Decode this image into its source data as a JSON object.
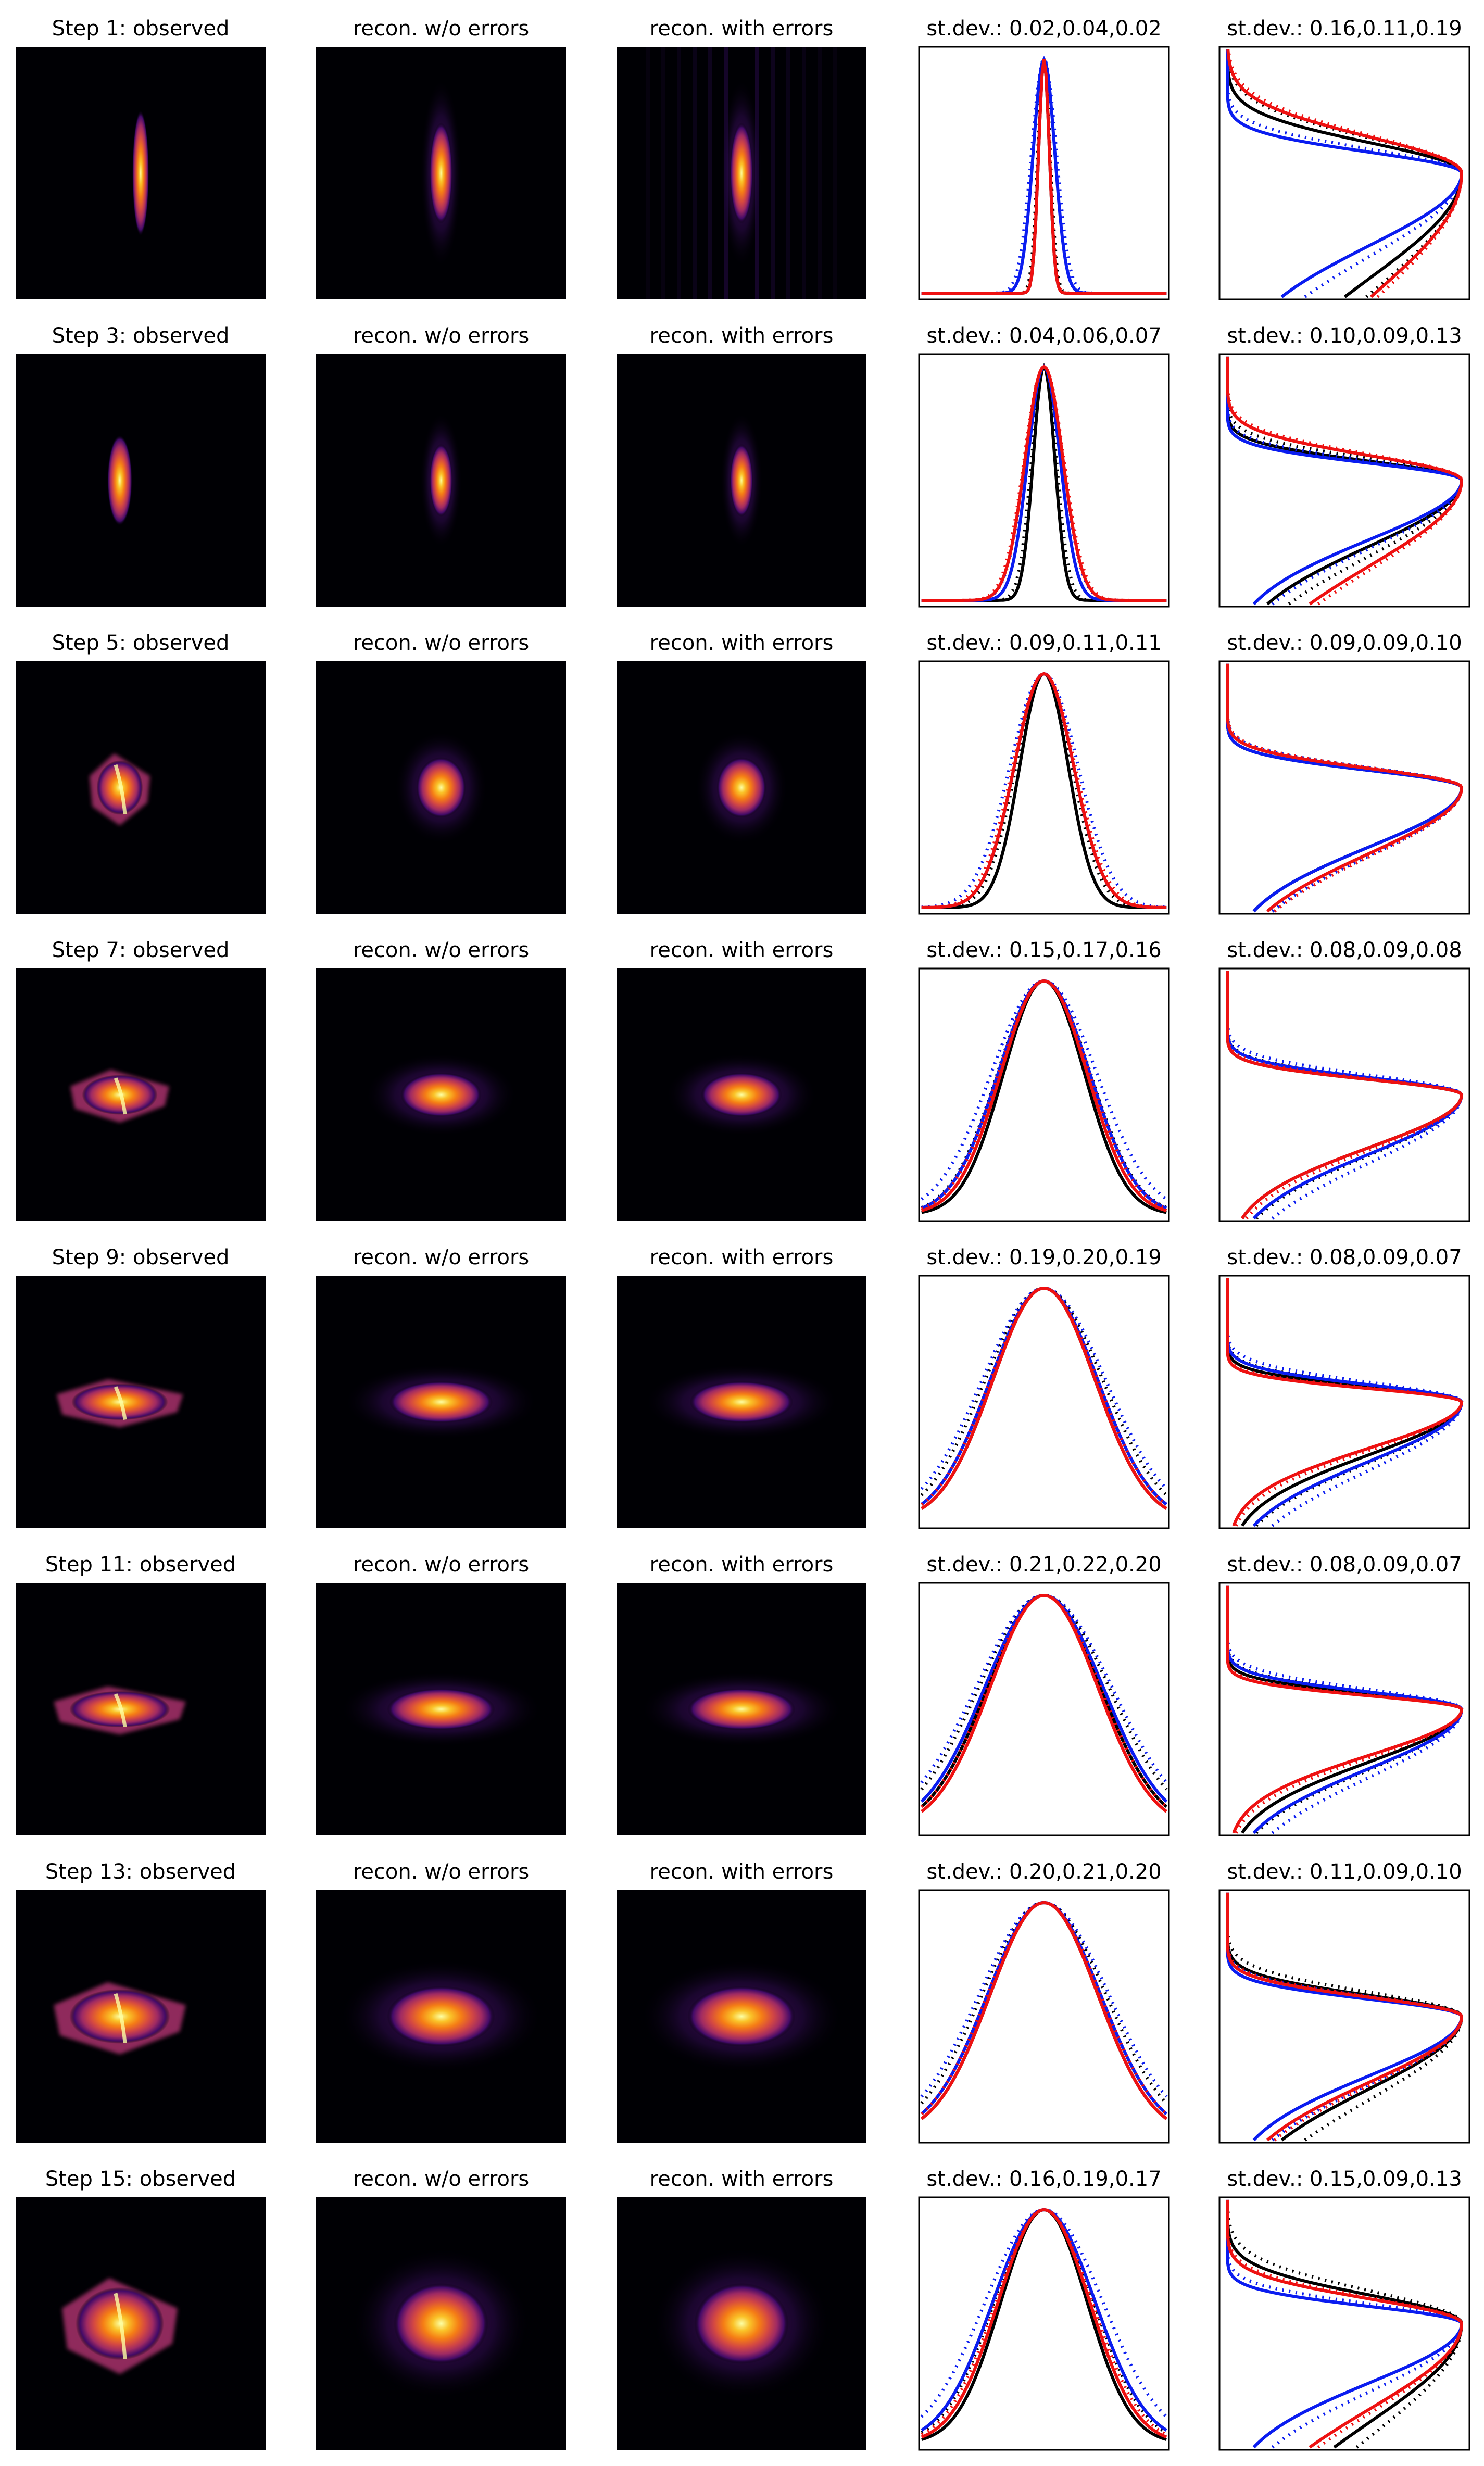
{
  "figure": {
    "column_titles": {
      "observed_suffix": ": observed",
      "recon_without": "recon. w/o errors",
      "recon_with": "recon. with errors",
      "stdev_prefix": "st.dev.: "
    },
    "colors": {
      "background": "#ffffff",
      "heatmap_background": "#000004",
      "colormap": "inferno",
      "curve_black": "#000000",
      "curve_blue": "#0a1cf0",
      "curve_red": "#ee1111"
    },
    "legend": "none",
    "grid": false
  },
  "chart_data": [
    {
      "type": "grid-of-panels",
      "rows": [
        {
          "step_label": "Step 1",
          "stdev_x": "0.02,0.04,0.02",
          "stdev_y": "0.16,0.11,0.19"
        },
        {
          "step_label": "Step 3",
          "stdev_x": "0.04,0.06,0.07",
          "stdev_y": "0.10,0.09,0.13"
        },
        {
          "step_label": "Step 5",
          "stdev_x": "0.09,0.11,0.11",
          "stdev_y": "0.09,0.09,0.10"
        },
        {
          "step_label": "Step 7",
          "stdev_x": "0.15,0.17,0.16",
          "stdev_y": "0.08,0.09,0.08"
        },
        {
          "step_label": "Step 9",
          "stdev_x": "0.19,0.20,0.19",
          "stdev_y": "0.08,0.09,0.07"
        },
        {
          "step_label": "Step 11",
          "stdev_x": "0.21,0.22,0.20",
          "stdev_y": "0.08,0.09,0.07"
        },
        {
          "step_label": "Step 13",
          "stdev_x": "0.20,0.21,0.20",
          "stdev_y": "0.11,0.09,0.10"
        },
        {
          "step_label": "Step 15",
          "stdev_x": "0.16,0.19,0.17",
          "stdev_y": "0.15,0.09,0.13"
        }
      ]
    }
  ]
}
